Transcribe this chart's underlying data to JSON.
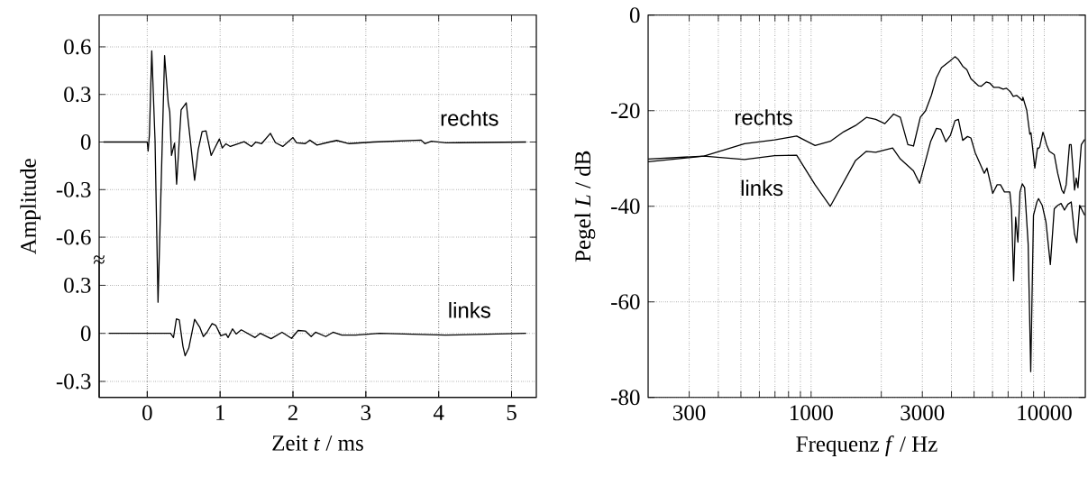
{
  "chart_data": [
    {
      "type": "line",
      "ylabel": "Amplitude",
      "xlim": [
        -0.66,
        5.34
      ],
      "ylim": [
        -1.61,
        0.8
      ],
      "xticks": [
        0,
        1,
        2,
        3,
        4,
        5
      ],
      "yticks": [
        -0.6,
        -0.3,
        0,
        0.3,
        0.6
      ],
      "tick_labels": "y",
      "grid": true,
      "series": [
        {
          "name": "rechts",
          "color": "#000000",
          "x": [
            -0.6,
            0.0,
            0.012,
            0.03,
            0.062,
            0.107,
            0.148,
            0.238,
            0.288,
            0.309,
            0.333,
            0.375,
            0.403,
            0.465,
            0.535,
            0.589,
            0.65,
            0.7,
            0.753,
            0.807,
            0.877,
            0.938,
            0.99,
            1.03,
            1.08,
            1.14,
            1.33,
            1.43,
            1.49,
            1.57,
            1.69,
            1.76,
            1.86,
            1.93,
            2.0,
            2.05,
            2.17,
            2.23,
            2.33,
            2.5,
            2.6,
            2.77,
            3.1,
            3.76,
            3.81,
            3.9,
            4.1,
            5.2
          ],
          "values": [
            0,
            0,
            -0.057,
            0.047,
            0.575,
            0.01,
            -1.01,
            0.545,
            0.247,
            0.19,
            -0.085,
            -0.006,
            -0.266,
            0.203,
            0.247,
            0.019,
            -0.241,
            -0.047,
            0.066,
            0.07,
            -0.085,
            -0.028,
            0.019,
            -0.038,
            -0.011,
            -0.028,
            0.002,
            -0.028,
            0,
            -0.01,
            0.055,
            -0.004,
            -0.028,
            0,
            0.028,
            -0.005,
            -0.01,
            0.012,
            -0.019,
            0,
            0.01,
            -0.01,
            0,
            0.012,
            -0.01,
            0.005,
            -0.005,
            0
          ]
        }
      ]
    },
    {
      "type": "line",
      "xlabel": "Zeit *t* / ms",
      "xlim": [
        -0.66,
        5.34
      ],
      "ylim": [
        -0.4,
        0.45
      ],
      "xticks": [
        0,
        1,
        2,
        3,
        4,
        5
      ],
      "yticks": [
        -0.3,
        0,
        0.3
      ],
      "grid": true,
      "annotations": [
        "≈"
      ],
      "series": [
        {
          "name": "links",
          "color": "#000000",
          "x": [
            -0.53,
            0.32,
            0.36,
            0.4,
            0.44,
            0.49,
            0.52,
            0.57,
            0.65,
            0.72,
            0.77,
            0.82,
            0.89,
            0.94,
            1.01,
            1.08,
            1.11,
            1.17,
            1.22,
            1.29,
            1.48,
            1.55,
            1.7,
            1.85,
            1.98,
            2.07,
            2.17,
            2.25,
            2.31,
            2.45,
            2.55,
            2.67,
            2.86,
            3.19,
            4.09,
            5.2
          ],
          "values": [
            0,
            0,
            -0.026,
            0.09,
            0.083,
            -0.081,
            -0.14,
            -0.092,
            0.088,
            0.039,
            -0.02,
            0.007,
            0.061,
            0.05,
            -0.015,
            -0.004,
            -0.026,
            0.028,
            -0.004,
            0.022,
            -0.026,
            0,
            -0.033,
            0.007,
            -0.031,
            0.018,
            0.015,
            -0.02,
            0.007,
            -0.02,
            0.007,
            -0.011,
            -0.011,
            0,
            -0.011,
            0
          ]
        }
      ]
    },
    {
      "type": "line",
      "xlabel": "Frequenz *f* / Hz",
      "ylabel": "Pegel *L* / dB",
      "log": "x",
      "xlim": [
        200,
        15000
      ],
      "ylim": [
        -80,
        0
      ],
      "grid": true,
      "xticks": [
        300,
        {
          "value": 400,
          "label": null
        },
        {
          "value": 500,
          "label": null
        },
        {
          "value": 600,
          "label": null
        },
        {
          "value": 700,
          "label": null
        },
        {
          "value": 800,
          "label": null
        },
        {
          "value": 900,
          "label": null
        },
        1000,
        {
          "value": 2000,
          "label": null
        },
        3000,
        {
          "value": 4000,
          "label": null
        },
        {
          "value": 5000,
          "label": null
        },
        {
          "value": 6000,
          "label": null
        },
        {
          "value": 7000,
          "label": null
        },
        {
          "value": 8000,
          "label": null
        },
        {
          "value": 9000,
          "label": null
        },
        10000
      ],
      "yticks": [
        -80,
        -60,
        -40,
        -20,
        0
      ],
      "series": [
        {
          "name": "rechts",
          "color": "#000000",
          "x": [
            200,
            347,
            518,
            698,
            867,
            1040,
            1209,
            1381,
            1552,
            1726,
            1893,
            2072,
            2259,
            2414,
            2600,
            2749,
            2940,
            3099,
            3280,
            3448,
            3625,
            3938,
            4140,
            4283,
            4470,
            4655,
            4845,
            5228,
            5360,
            5640,
            5834,
            6068,
            6380,
            6664,
            6890,
            7170,
            7360,
            7610,
            7870,
            8050,
            8100,
            8410,
            8670,
            8770,
            9110,
            9360,
            9450,
            9560,
            9870,
            10000,
            10230,
            10510,
            11040,
            11420,
            11890,
            12130,
            12420,
            12830,
            13040,
            13490,
            13710,
            13950,
            14420,
            14910
          ],
          "values": [
            -30.7,
            -29.5,
            -26.9,
            -26.1,
            -25.3,
            -27.3,
            -26.4,
            -24.4,
            -23.1,
            -21.4,
            -21.8,
            -22.7,
            -20.7,
            -21.4,
            -27.1,
            -27.4,
            -21.4,
            -20,
            -16.8,
            -13.1,
            -11.0,
            -9.6,
            -8.7,
            -9.3,
            -10.7,
            -11.4,
            -13.3,
            -14.8,
            -14.9,
            -14.0,
            -14.2,
            -15.1,
            -15.1,
            -15.5,
            -15.3,
            -16.1,
            -17.0,
            -16.8,
            -17.4,
            -17.9,
            -17.2,
            -19.9,
            -24.9,
            -24.6,
            -32.0,
            -27.8,
            -27.9,
            -27.6,
            -24.5,
            -25.3,
            -27.1,
            -28.5,
            -29.2,
            -33.1,
            -36.6,
            -37.3,
            -35.5,
            -27.1,
            -27.1,
            -36.6,
            -34.1,
            -36.1,
            -27.1,
            -26.0
          ]
        },
        {
          "name": "links",
          "color": "#000000",
          "x": [
            200,
            347,
            518,
            698,
            867,
            1040,
            1209,
            1552,
            1726,
            1893,
            2237,
            2414,
            2749,
            2919,
            3259,
            3448,
            3600,
            3785,
            3963,
            4140,
            4283,
            4470,
            4687,
            4845,
            5057,
            5531,
            5680,
            6010,
            6280,
            6490,
            6750,
            7120,
            7240,
            7390,
            7540,
            7710,
            7870,
            8050,
            8240,
            8530,
            8750,
            8990,
            9300,
            9450,
            9800,
            10170,
            10620,
            11040,
            11420,
            11810,
            12210,
            12620,
            13050,
            13490,
            13790,
            14190,
            14910
          ],
          "values": [
            -30.1,
            -29.5,
            -30.2,
            -29.4,
            -29.3,
            -35.5,
            -40.0,
            -30.4,
            -28.5,
            -28.7,
            -27.8,
            -30.1,
            -32.6,
            -35.2,
            -26.4,
            -23.7,
            -23.9,
            -26.5,
            -25.1,
            -22.1,
            -21.8,
            -26.2,
            -25.4,
            -25.7,
            -28.8,
            -33.1,
            -32.0,
            -37.3,
            -35.5,
            -35.5,
            -37.0,
            -37.0,
            -40.8,
            -55.6,
            -42.3,
            -47.5,
            -37.0,
            -35.3,
            -36.1,
            -47.9,
            -74.6,
            -41.9,
            -39.1,
            -38.4,
            -39.8,
            -43.3,
            -52.2,
            -40.5,
            -39.8,
            -39.4,
            -40.8,
            -39.6,
            -39.1,
            -45.8,
            -47.6,
            -39.8,
            -41.9
          ]
        }
      ]
    }
  ]
}
